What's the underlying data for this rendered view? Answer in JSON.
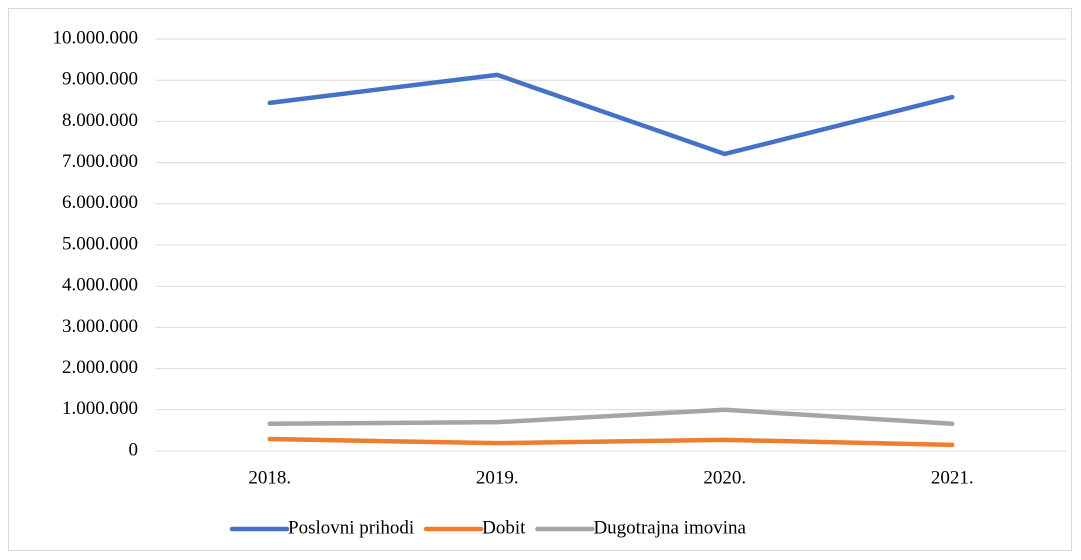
{
  "chart_data": {
    "type": "line",
    "categories": [
      "2018.",
      "2019.",
      "2020.",
      "2021."
    ],
    "series": [
      {
        "name": "Poslovni prihodi",
        "color": "#4472c4",
        "values": [
          8450000,
          9130000,
          7210000,
          8590000
        ]
      },
      {
        "name": "Dobit",
        "color": "#ed7d31",
        "values": [
          290000,
          190000,
          270000,
          150000
        ]
      },
      {
        "name": "Dugotrajna imovina",
        "color": "#a5a5a5",
        "values": [
          660000,
          700000,
          1000000,
          660000
        ]
      }
    ],
    "ylim": [
      0,
      10000000
    ],
    "yticks": [
      0,
      {
        "value": 1000000,
        "label": "1.000.000"
      },
      {
        "value": 2000000,
        "label": "2.000.000"
      },
      {
        "value": 3000000,
        "label": "3.000.000"
      },
      {
        "value": 4000000,
        "label": "4.000.000"
      },
      {
        "value": 5000000,
        "label": "5.000.000"
      },
      {
        "value": 6000000,
        "label": "6.000.000"
      },
      {
        "value": 7000000,
        "label": "7.000.000"
      },
      {
        "value": 8000000,
        "label": "8.000.000"
      },
      {
        "value": 9000000,
        "label": "9.000.000"
      },
      {
        "value": 10000000,
        "label": "10.000.000"
      }
    ],
    "grid": true,
    "legend": "bottom"
  }
}
